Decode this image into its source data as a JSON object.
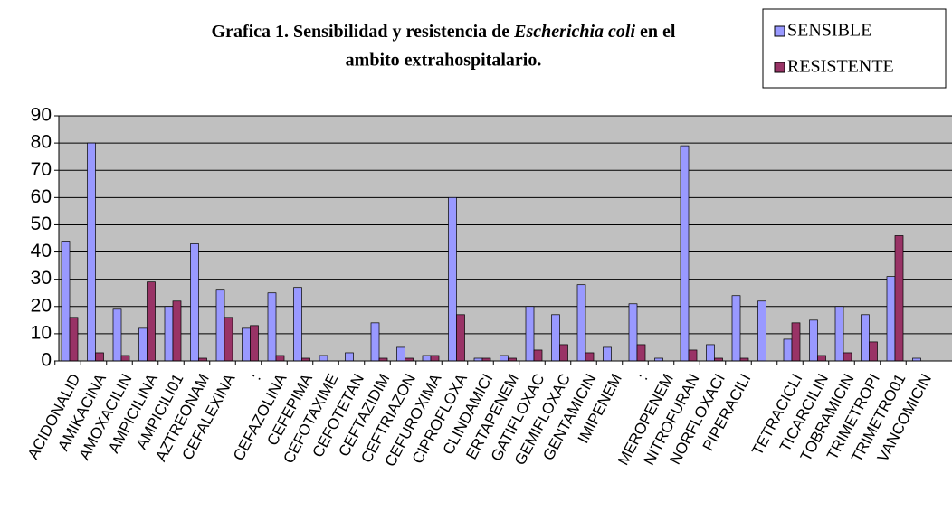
{
  "chart_data": {
    "type": "bar",
    "title": [
      "Grafica 1. Sensibilidad y resistencia de ",
      "Escherichia coli",
      " en el",
      "ambito extrahospitalario."
    ],
    "categories": [
      "ACIDONALID",
      "AMIKACINA",
      "AMOXACILIN",
      "AMPICILINA",
      "AMPICILI01",
      "AZTREONAM",
      "CEFALEXINA",
      ":",
      "CEFAZOLINA",
      "CEFEPIMA",
      "CEFOTAXIME",
      "CEFOTETAN",
      "CEFTAZIDIM",
      "CEFTRIAZON",
      "CEFUROXIMA",
      "CIPROFLOXA",
      "CLINDAMICI",
      "ERTAPENEM",
      "GATIFLOXAC",
      "GEMIFLOXAC",
      "GENTAMICIN",
      "IMIPENEM",
      ":",
      "MEROPENEM",
      "NITROFURAN",
      "NORFLOXACI",
      "PIPERACILI",
      null,
      "TETRACICLI",
      "TICARCILIN",
      "TOBRAMICIN",
      "TRIMETROPI",
      "TRIMETRO01",
      "VANCOMICIN"
    ],
    "series": [
      {
        "name": "SENSIBLE",
        "color": "#9999ff",
        "values": [
          44,
          80,
          19,
          12,
          20,
          43,
          26,
          12,
          25,
          27,
          2,
          3,
          14,
          5,
          2,
          60,
          1,
          2,
          20,
          17,
          28,
          5,
          21,
          1,
          79,
          6,
          24,
          22,
          8,
          15,
          20,
          17,
          31,
          1
        ]
      },
      {
        "name": "RESISTENTE",
        "color": "#993366",
        "values": [
          16,
          3,
          2,
          29,
          22,
          1,
          16,
          13,
          2,
          1,
          0,
          0,
          1,
          1,
          2,
          17,
          1,
          1,
          4,
          6,
          3,
          0,
          6,
          0,
          4,
          1,
          1,
          0,
          14,
          2,
          3,
          7,
          46,
          0
        ]
      }
    ],
    "ylim": [
      0,
      90
    ],
    "yticks": [
      0,
      10,
      20,
      30,
      40,
      50,
      60,
      70,
      80,
      90
    ],
    "grid": true,
    "legend": "top-right"
  }
}
